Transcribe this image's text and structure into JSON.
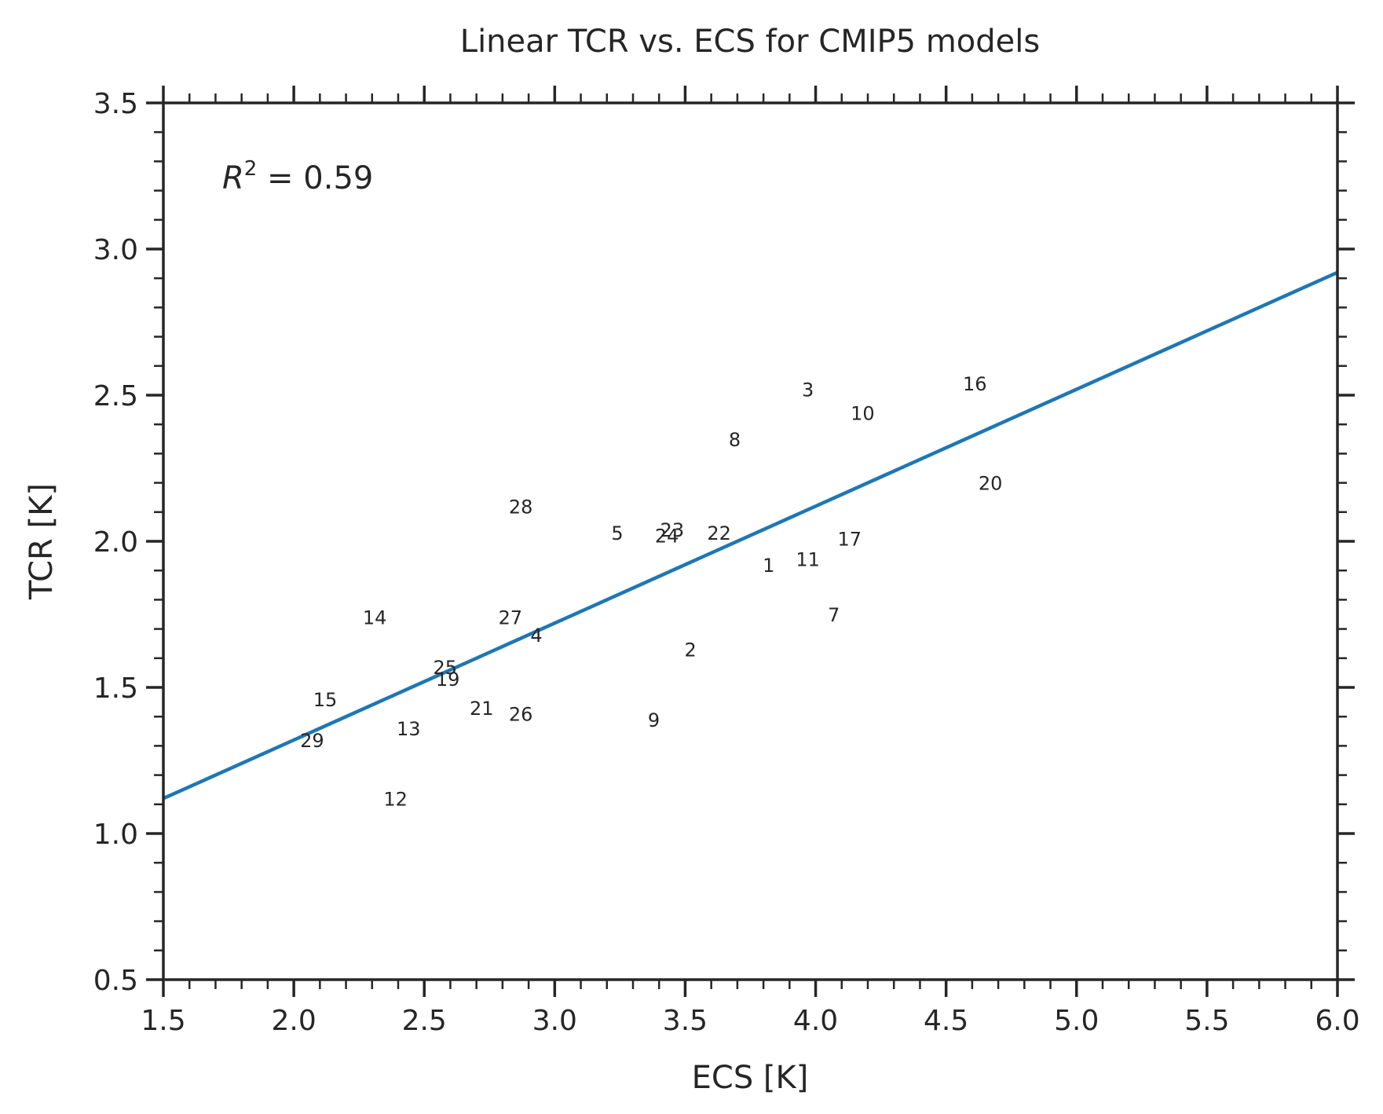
{
  "chart_data": {
    "type": "scatter",
    "title": "Linear TCR vs. ECS for CMIP5 models",
    "xlabel": "ECS [K]",
    "ylabel": "TCR [K]",
    "xlim": [
      1.5,
      6.0
    ],
    "ylim": [
      0.5,
      3.5
    ],
    "xticks": [
      "1.5",
      "2.0",
      "2.5",
      "3.0",
      "3.5",
      "4.0",
      "4.5",
      "5.0",
      "5.5",
      "6.0"
    ],
    "yticks": [
      "0.5",
      "1.0",
      "1.5",
      "2.0",
      "2.5",
      "3.0",
      "3.5"
    ],
    "xtick_values": [
      1.5,
      2.0,
      2.5,
      3.0,
      3.5,
      4.0,
      4.5,
      5.0,
      5.5,
      6.0
    ],
    "ytick_values": [
      0.5,
      1.0,
      1.5,
      2.0,
      2.5,
      3.0,
      3.5
    ],
    "minor_step_x": 0.1,
    "minor_step_y": 0.1,
    "grid": false,
    "annotation": {
      "symbol": "R",
      "exponent": "2",
      "text": " = 0.59"
    },
    "points": [
      {
        "label": "1",
        "x": 3.82,
        "y": 1.92
      },
      {
        "label": "2",
        "x": 3.52,
        "y": 1.63
      },
      {
        "label": "3",
        "x": 3.97,
        "y": 2.52
      },
      {
        "label": "4",
        "x": 2.93,
        "y": 1.68
      },
      {
        "label": "5",
        "x": 3.24,
        "y": 2.03
      },
      {
        "label": "7",
        "x": 4.07,
        "y": 1.75
      },
      {
        "label": "8",
        "x": 3.69,
        "y": 2.35
      },
      {
        "label": "9",
        "x": 3.38,
        "y": 1.39
      },
      {
        "label": "10",
        "x": 4.18,
        "y": 2.44
      },
      {
        "label": "11",
        "x": 3.97,
        "y": 1.94
      },
      {
        "label": "12",
        "x": 2.39,
        "y": 1.12
      },
      {
        "label": "13",
        "x": 2.44,
        "y": 1.36
      },
      {
        "label": "14",
        "x": 2.31,
        "y": 1.74
      },
      {
        "label": "15",
        "x": 2.12,
        "y": 1.46
      },
      {
        "label": "16",
        "x": 4.61,
        "y": 2.54
      },
      {
        "label": "17",
        "x": 4.13,
        "y": 2.01
      },
      {
        "label": "19",
        "x": 2.59,
        "y": 1.53
      },
      {
        "label": "20",
        "x": 4.67,
        "y": 2.2
      },
      {
        "label": "21",
        "x": 2.72,
        "y": 1.43
      },
      {
        "label": "22",
        "x": 3.63,
        "y": 2.03
      },
      {
        "label": "23",
        "x": 3.45,
        "y": 2.04
      },
      {
        "label": "24",
        "x": 3.43,
        "y": 2.02
      },
      {
        "label": "25",
        "x": 2.58,
        "y": 1.57
      },
      {
        "label": "26",
        "x": 2.87,
        "y": 1.41
      },
      {
        "label": "27",
        "x": 2.83,
        "y": 1.74
      },
      {
        "label": "28",
        "x": 2.87,
        "y": 2.12
      },
      {
        "label": "29",
        "x": 2.07,
        "y": 1.32
      }
    ],
    "fit_line": {
      "x": [
        1.5,
        6.0
      ],
      "y": [
        1.12,
        2.92
      ],
      "color": "#1f77b4"
    },
    "axis_color": "#262626"
  }
}
